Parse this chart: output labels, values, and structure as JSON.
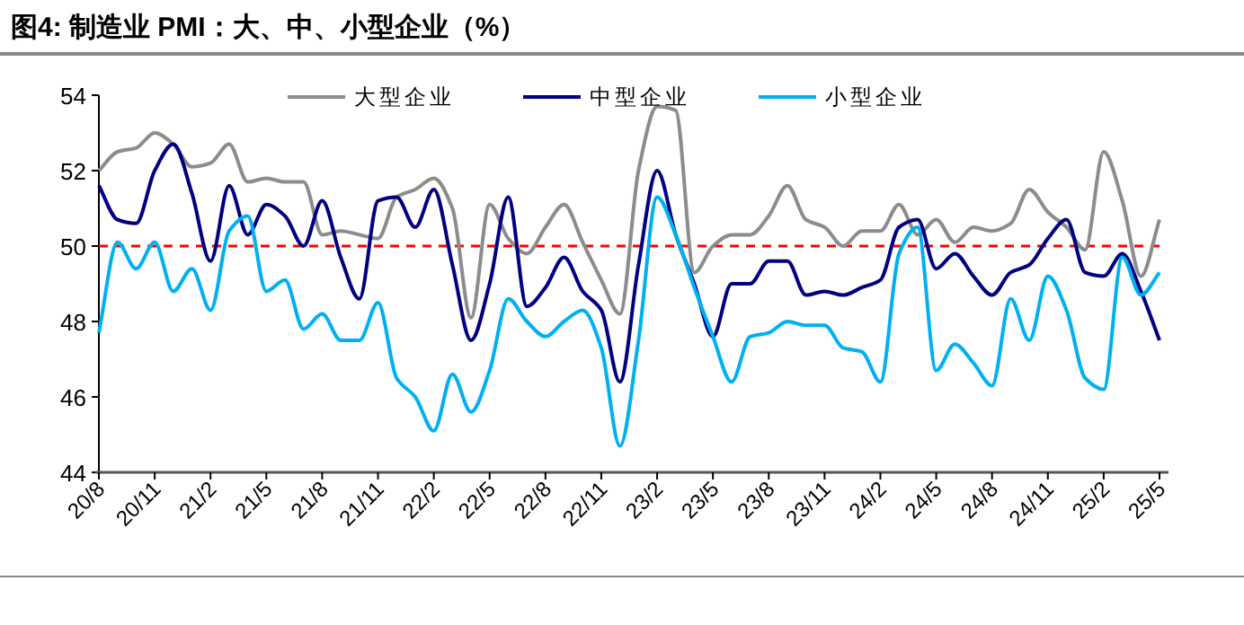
{
  "chart_data": {
    "type": "line",
    "title": "图4:  制造业 PMI：大、中、小型企业（%）",
    "categories": [
      "20/8",
      null,
      null,
      "20/11",
      null,
      null,
      "21/2",
      null,
      null,
      "21/5",
      null,
      null,
      "21/8",
      null,
      null,
      "21/11",
      null,
      null,
      "22/2",
      null,
      null,
      "22/5",
      null,
      null,
      "22/8",
      null,
      null,
      "22/11",
      null,
      null,
      "23/2",
      null,
      null,
      "23/5",
      null,
      null,
      "23/8",
      null,
      null,
      "23/11",
      null,
      null,
      "24/2",
      null,
      null,
      "24/5",
      null,
      null,
      "24/8",
      null,
      null,
      "24/11",
      null,
      null,
      "25/2",
      null,
      null,
      "25/5"
    ],
    "series": [
      {
        "name": "大型企业",
        "color": "#8c8c8c",
        "values": [
          52.0,
          52.5,
          52.6,
          53.0,
          52.7,
          52.1,
          52.2,
          52.7,
          51.7,
          51.8,
          51.7,
          51.7,
          50.3,
          50.4,
          50.3,
          50.2,
          51.3,
          51.5,
          51.8,
          51.0,
          48.1,
          51.1,
          50.2,
          49.8,
          50.5,
          51.1,
          50.1,
          49.1,
          48.2,
          52.0,
          53.7,
          53.6,
          49.3,
          50.0,
          50.3,
          50.3,
          50.8,
          51.6,
          50.7,
          50.5,
          50.0,
          50.4,
          50.4,
          51.1,
          50.3,
          50.7,
          50.1,
          50.5,
          50.4,
          50.6,
          51.5,
          50.9,
          50.5,
          49.9,
          52.5,
          51.2,
          49.2,
          50.7
        ]
      },
      {
        "name": "中型企业",
        "color": "#000080",
        "values": [
          51.6,
          50.7,
          50.6,
          52.0,
          52.7,
          51.4,
          49.6,
          51.6,
          50.3,
          51.1,
          50.8,
          50.0,
          51.2,
          49.7,
          48.6,
          51.2,
          51.3,
          50.5,
          51.5,
          49.5,
          47.5,
          49.0,
          51.3,
          48.4,
          48.9,
          49.7,
          48.8,
          48.3,
          46.4,
          49.5,
          52.0,
          50.3,
          49.0,
          47.6,
          49.0,
          49.0,
          49.6,
          49.6,
          48.7,
          48.8,
          48.7,
          48.9,
          49.1,
          50.5,
          50.7,
          49.4,
          49.8,
          49.2,
          48.7,
          49.3,
          49.5,
          50.2,
          50.7,
          49.3,
          49.2,
          49.8,
          48.8,
          47.5
        ]
      },
      {
        "name": "小型企业",
        "color": "#00b0f0",
        "values": [
          47.7,
          50.1,
          49.4,
          50.1,
          48.8,
          49.4,
          48.3,
          50.4,
          50.8,
          48.8,
          49.1,
          47.8,
          48.2,
          47.5,
          47.5,
          48.5,
          46.5,
          46.0,
          45.1,
          46.6,
          45.6,
          46.7,
          48.6,
          48.0,
          47.6,
          48.0,
          48.3,
          47.3,
          44.7,
          47.5,
          51.3,
          50.3,
          48.9,
          47.6,
          46.4,
          47.6,
          47.7,
          48.0,
          47.9,
          47.9,
          47.3,
          47.2,
          46.4,
          49.8,
          50.5,
          46.7,
          47.4,
          46.9,
          46.3,
          48.6,
          47.5,
          49.2,
          48.3,
          46.5,
          46.2,
          49.7,
          48.7,
          49.3
        ]
      }
    ],
    "ylim": [
      44,
      54
    ],
    "yticks": [
      44,
      46,
      48,
      50,
      52,
      54
    ],
    "ref_lines": [
      {
        "axis": "y",
        "value": 50,
        "color": "#ff0000",
        "line_style": "dashed"
      }
    ],
    "legend": "top"
  }
}
